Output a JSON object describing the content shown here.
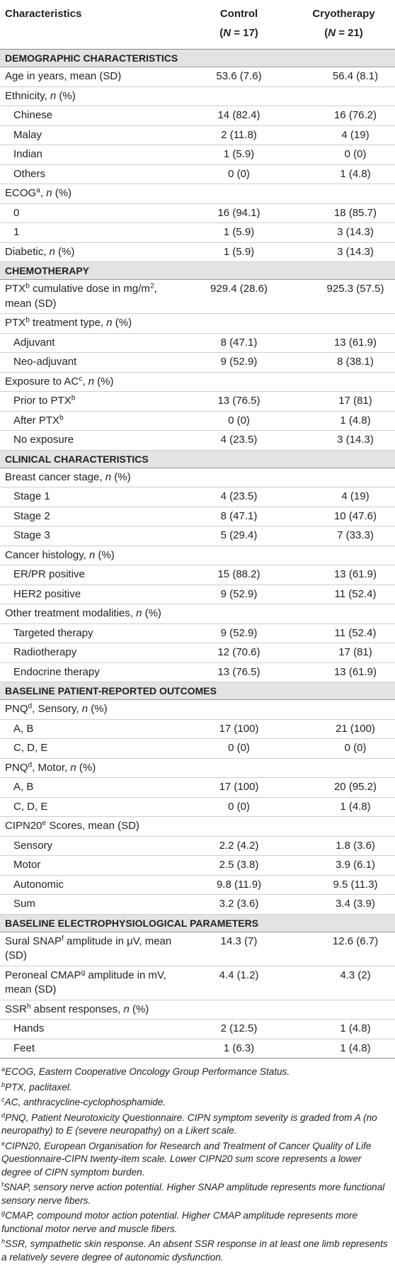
{
  "table": {
    "header": [
      {
        "lines": [
          [
            "Characteristics"
          ]
        ]
      },
      {
        "lines": [
          [
            "Control"
          ],
          [
            "(",
            {
              "text": "N",
              "style": "italic"
            },
            " = 17)"
          ]
        ]
      },
      {
        "lines": [
          [
            "Cryotherapy"
          ],
          [
            "(",
            {
              "text": "N",
              "style": "italic"
            },
            " = 21)"
          ]
        ]
      }
    ],
    "rows": [
      {
        "section": "DEMOGRAPHIC CHARACTERISTICS"
      },
      {
        "label": [
          "Age in years, mean (SD)"
        ],
        "cells": [
          "53.6 (7.6)",
          "56.4 (8.1)"
        ]
      },
      {
        "label": [
          "Ethnicity, ",
          {
            "text": "n",
            "style": "italic"
          },
          " (%)"
        ]
      },
      {
        "label": [
          "Chinese"
        ],
        "indent": true,
        "cells": [
          "14 (82.4)",
          "16 (76.2)"
        ]
      },
      {
        "label": [
          "Malay"
        ],
        "indent": true,
        "cells": [
          "2 (11.8)",
          "4 (19)"
        ]
      },
      {
        "label": [
          "Indian"
        ],
        "indent": true,
        "cells": [
          "1 (5.9)",
          "0 (0)"
        ]
      },
      {
        "label": [
          "Others"
        ],
        "indent": true,
        "cells": [
          "0 (0)",
          "1 (4.8)"
        ]
      },
      {
        "label": [
          "ECOG",
          {
            "text": "a",
            "style": "sup"
          },
          ", ",
          {
            "text": "n",
            "style": "italic"
          },
          " (%)"
        ]
      },
      {
        "label": [
          "0"
        ],
        "indent": true,
        "cells": [
          "16 (94.1)",
          "18 (85.7)"
        ]
      },
      {
        "label": [
          "1"
        ],
        "indent": true,
        "cells": [
          "1 (5.9)",
          "3 (14.3)"
        ]
      },
      {
        "label": [
          "Diabetic, ",
          {
            "text": "n",
            "style": "italic"
          },
          " (%)"
        ],
        "cells": [
          "1 (5.9)",
          "3 (14.3)"
        ]
      },
      {
        "section": "CHEMOTHERAPY"
      },
      {
        "label": [
          "PTX",
          {
            "text": "b",
            "style": "sup"
          },
          " cumulative dose in mg/m",
          {
            "text": "2",
            "style": "sup"
          },
          ", mean (SD)"
        ],
        "cells": [
          "929.4 (28.6)",
          "925.3 (57.5)"
        ]
      },
      {
        "label": [
          "PTX",
          {
            "text": "b",
            "style": "sup"
          },
          " treatment type, ",
          {
            "text": "n",
            "style": "italic"
          },
          " (%)"
        ]
      },
      {
        "label": [
          "Adjuvant"
        ],
        "indent": true,
        "cells": [
          "8 (47.1)",
          "13 (61.9)"
        ]
      },
      {
        "label": [
          "Neo-adjuvant"
        ],
        "indent": true,
        "cells": [
          "9 (52.9)",
          "8 (38.1)"
        ]
      },
      {
        "label": [
          "Exposure to AC",
          {
            "text": "c",
            "style": "sup"
          },
          ", ",
          {
            "text": "n",
            "style": "italic"
          },
          " (%)"
        ]
      },
      {
        "label": [
          "Prior to PTX",
          {
            "text": "b",
            "style": "sup"
          }
        ],
        "indent": true,
        "cells": [
          "13 (76.5)",
          "17 (81)"
        ]
      },
      {
        "label": [
          "After PTX",
          {
            "text": "b",
            "style": "sup"
          }
        ],
        "indent": true,
        "cells": [
          "0 (0)",
          "1 (4.8)"
        ]
      },
      {
        "label": [
          "No exposure"
        ],
        "indent": true,
        "cells": [
          "4 (23.5)",
          "3 (14.3)"
        ]
      },
      {
        "section": "CLINICAL CHARACTERISTICS"
      },
      {
        "label": [
          "Breast cancer stage, ",
          {
            "text": "n",
            "style": "italic"
          },
          " (%)"
        ]
      },
      {
        "label": [
          "Stage 1"
        ],
        "indent": true,
        "cells": [
          "4 (23.5)",
          "4 (19)"
        ]
      },
      {
        "label": [
          "Stage 2"
        ],
        "indent": true,
        "cells": [
          "8 (47.1)",
          "10 (47.6)"
        ]
      },
      {
        "label": [
          "Stage 3"
        ],
        "indent": true,
        "cells": [
          "5 (29.4)",
          "7 (33.3)"
        ]
      },
      {
        "label": [
          "Cancer histology, ",
          {
            "text": "n",
            "style": "italic"
          },
          " (%)"
        ]
      },
      {
        "label": [
          "ER/PR positive"
        ],
        "indent": true,
        "cells": [
          "15 (88.2)",
          "13 (61.9)"
        ]
      },
      {
        "label": [
          "HER2 positive"
        ],
        "indent": true,
        "cells": [
          "9 (52.9)",
          "11 (52.4)"
        ]
      },
      {
        "label": [
          "Other treatment modalities, ",
          {
            "text": "n",
            "style": "italic"
          },
          " (%)"
        ]
      },
      {
        "label": [
          "Targeted therapy"
        ],
        "indent": true,
        "cells": [
          "9 (52.9)",
          "11 (52.4)"
        ]
      },
      {
        "label": [
          "Radiotherapy"
        ],
        "indent": true,
        "cells": [
          "12 (70.6)",
          "17 (81)"
        ]
      },
      {
        "label": [
          "Endocrine therapy"
        ],
        "indent": true,
        "cells": [
          "13 (76.5)",
          "13 (61.9)"
        ]
      },
      {
        "section": "BASELINE PATIENT-REPORTED OUTCOMES"
      },
      {
        "label": [
          "PNQ",
          {
            "text": "d",
            "style": "sup"
          },
          ", Sensory, ",
          {
            "text": "n",
            "style": "italic"
          },
          " (%)"
        ]
      },
      {
        "label": [
          "A, B"
        ],
        "indent": true,
        "cells": [
          "17 (100)",
          "21 (100)"
        ]
      },
      {
        "label": [
          "C, D, E"
        ],
        "indent": true,
        "cells": [
          "0 (0)",
          "0 (0)"
        ]
      },
      {
        "label": [
          "PNQ",
          {
            "text": "d",
            "style": "sup"
          },
          ", Motor, ",
          {
            "text": "n",
            "style": "italic"
          },
          " (%)"
        ]
      },
      {
        "label": [
          "A, B"
        ],
        "indent": true,
        "cells": [
          "17 (100)",
          "20 (95.2)"
        ]
      },
      {
        "label": [
          "C, D, E"
        ],
        "indent": true,
        "cells": [
          "0 (0)",
          "1 (4.8)"
        ]
      },
      {
        "label": [
          "CIPN20",
          {
            "text": "e",
            "style": "sup"
          },
          " Scores, mean (SD)"
        ]
      },
      {
        "label": [
          "Sensory"
        ],
        "indent": true,
        "cells": [
          "2.2 (4.2)",
          "1.8 (3.6)"
        ]
      },
      {
        "label": [
          "Motor"
        ],
        "indent": true,
        "cells": [
          "2.5 (3.8)",
          "3.9 (6.1)"
        ]
      },
      {
        "label": [
          "Autonomic"
        ],
        "indent": true,
        "cells": [
          "9.8 (11.9)",
          "9.5 (11.3)"
        ]
      },
      {
        "label": [
          "Sum"
        ],
        "indent": true,
        "cells": [
          "3.2 (3.6)",
          "3.4 (3.9)"
        ]
      },
      {
        "section": "BASELINE ELECTROPHYSIOLOGICAL PARAMETERS"
      },
      {
        "label": [
          "Sural SNAP",
          {
            "text": "f",
            "style": "sup"
          },
          " amplitude in μV, mean (SD)"
        ],
        "cells": [
          "14.3 (7)",
          "12.6 (6.7)"
        ]
      },
      {
        "label": [
          "Peroneal CMAP",
          {
            "text": "g",
            "style": "sup"
          },
          " amplitude in mV, mean (SD)"
        ],
        "cells": [
          "4.4 (1.2)",
          "4.3 (2)"
        ]
      },
      {
        "label": [
          "SSR",
          {
            "text": "h",
            "style": "sup"
          },
          " absent responses, ",
          {
            "text": "n",
            "style": "italic"
          },
          " (%)"
        ]
      },
      {
        "label": [
          "Hands"
        ],
        "indent": true,
        "cells": [
          "2 (12.5)",
          "1 (4.8)"
        ]
      },
      {
        "label": [
          "Feet"
        ],
        "indent": true,
        "cells": [
          "1 (6.3)",
          "1 (4.8)"
        ]
      }
    ],
    "footnotes": [
      [
        {
          "text": "a",
          "style": "sup"
        },
        "ECOG, Eastern Cooperative Oncology Group Performance Status."
      ],
      [
        {
          "text": "b",
          "style": "sup"
        },
        "PTX, paclitaxel."
      ],
      [
        {
          "text": "c",
          "style": "sup"
        },
        "AC, anthracycline-cyclophosphamide."
      ],
      [
        {
          "text": "d",
          "style": "sup"
        },
        "PNQ, Patient Neurotoxicity Questionnaire. CIPN symptom severity is graded from A (no neuropathy) to E (severe neuropathy) on a Likert scale."
      ],
      [
        {
          "text": "e",
          "style": "sup"
        },
        "CIPN20, European Organisation for Research and Treatment of Cancer Quality of Life Questionnaire-CIPN twenty-item scale. Lower CIPN20 sum score represents a lower degree of CIPN symptom burden."
      ],
      [
        {
          "text": "f",
          "style": "sup"
        },
        "SNAP, sensory nerve action potential. Higher SNAP amplitude represents more functional sensory nerve fibers."
      ],
      [
        {
          "text": "g",
          "style": "sup"
        },
        "CMAP, compound motor action potential. Higher CMAP amplitude represents more functional motor nerve and muscle fibers."
      ],
      [
        {
          "text": "h",
          "style": "sup"
        },
        "SSR, sympathetic skin response. An absent SSR response in at least one limb represents a relatively severe degree of autonomic dysfunction."
      ]
    ]
  }
}
